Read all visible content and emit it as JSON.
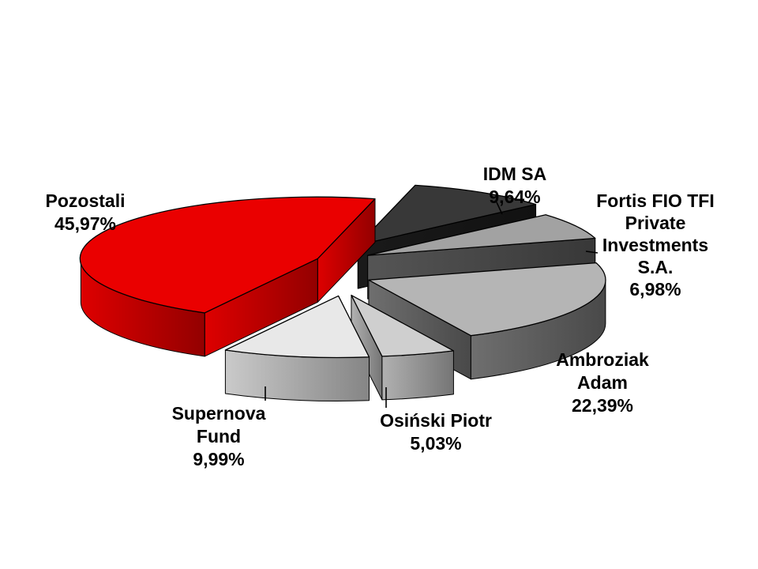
{
  "chart_data": {
    "type": "pie",
    "style": "3d-exploded",
    "start_angle_deg": 14,
    "unit": "%",
    "decimal_separator": ",",
    "background": "#ffffff",
    "slices": [
      {
        "name": "IDM SA",
        "value": 9.64,
        "display": "9,64%",
        "color_top": "#383838",
        "color_side": "#161616",
        "label_lines": [
          "IDM SA",
          "9,64%"
        ]
      },
      {
        "name": "Fortis FIO TFI Private Investments S.A.",
        "value": 6.98,
        "display": "6,98%",
        "color_top": "#A2A2A2",
        "color_side": "#484848",
        "label_lines": [
          "Fortis FIO TFI",
          "Private",
          "Investments",
          "S.A.",
          "6,98%"
        ]
      },
      {
        "name": "Ambroziak Adam",
        "value": 22.39,
        "display": "22,39%",
        "color_top": "#B5B5B5",
        "color_side": "#5E5E5E",
        "label_lines": [
          "Ambroziak",
          "Adam",
          "22,39%"
        ]
      },
      {
        "name": "Osiński Piotr",
        "value": 5.03,
        "display": "5,03%",
        "color_top": "#CFCFCF",
        "color_side": "#969696",
        "label_lines": [
          "Osiński Piotr",
          "5,03%"
        ]
      },
      {
        "name": "Supernova Fund",
        "value": 9.99,
        "display": "9,99%",
        "color_top": "#E8E8E8",
        "color_side": "#ABABAB",
        "label_lines": [
          "Supernova",
          "Fund",
          "9,99%"
        ]
      },
      {
        "name": "Pozostali",
        "value": 45.97,
        "display": "45,97%",
        "color_top": "#EA0000",
        "color_side": "#BC0000",
        "label_lines": [
          "Pozostali",
          "45,97%"
        ]
      }
    ]
  }
}
